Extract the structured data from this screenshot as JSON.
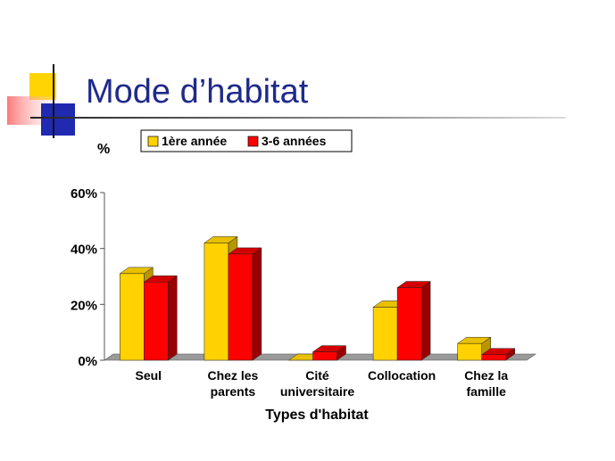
{
  "slide": {
    "title": "Mode d’habitat"
  },
  "colors": {
    "series1": "#ffd200",
    "series1_dark": "#b89600",
    "series1_top": "#e8c000",
    "series2": "#ff0000",
    "series2_dark": "#9a0000",
    "series2_top": "#d40000",
    "floor": "#9a9a9a",
    "title": "#1f2a8a"
  },
  "chart_data": {
    "type": "bar",
    "title": "",
    "xlabel": "Types d'habitat",
    "ylabel": "%",
    "ylim": [
      0,
      60
    ],
    "yticks": [
      {
        "value": 0,
        "label": "0%"
      },
      {
        "value": 20,
        "label": "20%"
      },
      {
        "value": 40,
        "label": "40%"
      },
      {
        "value": 60,
        "label": "60%"
      }
    ],
    "categories": [
      [
        "Seul"
      ],
      [
        "Chez les",
        "parents"
      ],
      [
        "Cité",
        "universitaire"
      ],
      [
        "Collocation"
      ],
      [
        "Chez la",
        "famille"
      ]
    ],
    "series": [
      {
        "name": "1ère année",
        "values": [
          31,
          42,
          0,
          19,
          6
        ]
      },
      {
        "name": "3-6 années",
        "values": [
          28,
          38,
          3,
          26,
          2
        ]
      }
    ],
    "legend_position": "top",
    "grid": false,
    "three_d": true
  }
}
